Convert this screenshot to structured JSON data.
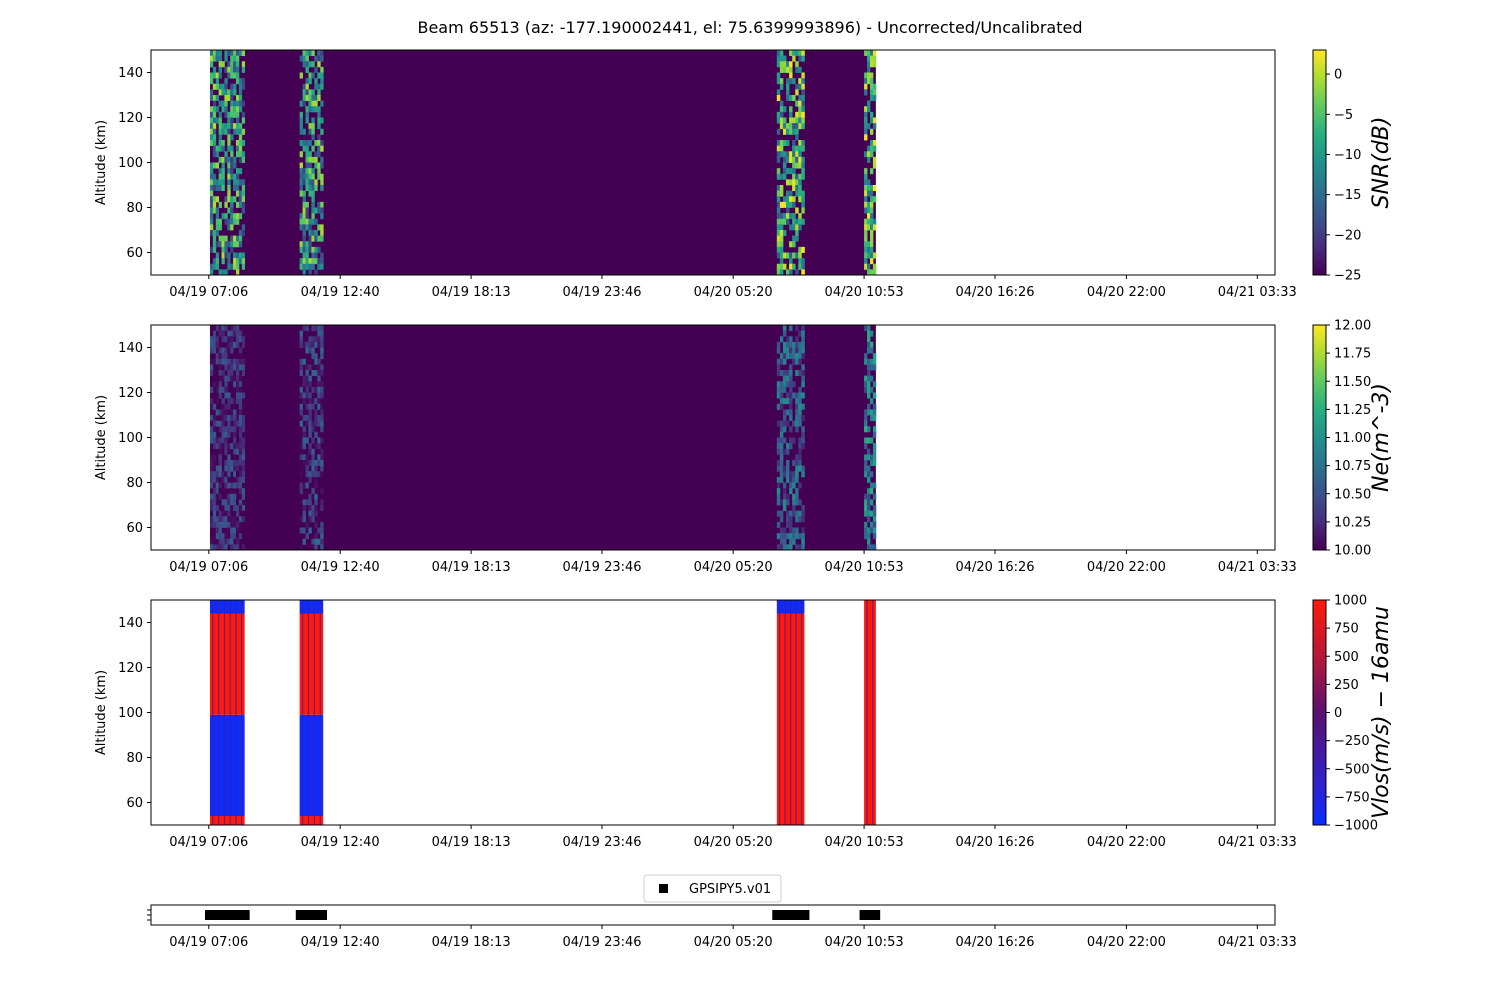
{
  "title": "Beam 65513 (az: -177.190002441, el: 75.6399993896) - Uncorrected/Uncalibrated",
  "time_ticks": [
    "04/19 07:06",
    "04/19 12:40",
    "04/19 18:13",
    "04/19 23:46",
    "04/20 05:20",
    "04/20 10:53",
    "04/20 16:26",
    "04/20 22:00",
    "04/21 03:33"
  ],
  "time_tick_hours": [
    7.1,
    12.67,
    18.22,
    23.77,
    29.33,
    34.88,
    40.43,
    46.0,
    51.55
  ],
  "time_range_hours": [
    4.65,
    52.3
  ],
  "chart_data": [
    {
      "type": "heatmap",
      "ylabel": "Altitude (km)",
      "ylim": [
        50,
        150
      ],
      "yticks": [
        60,
        80,
        100,
        120,
        140
      ],
      "colorbar": {
        "label": "SNR(dB)",
        "colormap": "viridis",
        "range": [
          -25,
          3
        ],
        "ticks": [
          0,
          -5,
          -10,
          -15,
          -20,
          -25
        ],
        "tick_labels": [
          "0",
          "−5",
          "−10",
          "−15",
          "−20",
          "−25"
        ]
      },
      "background_value": -25,
      "data_extent_hours": [
        7.15,
        35.38
      ],
      "series": [
        {
          "time_start": 7.15,
          "time_end": 8.62,
          "value_min": -20,
          "value_max": 0
        },
        {
          "time_start": 10.95,
          "time_end": 11.95,
          "value_min": -20,
          "value_max": 0
        },
        {
          "time_start": 31.18,
          "time_end": 32.35,
          "value_min": -18,
          "value_max": 3
        },
        {
          "time_start": 34.88,
          "time_end": 35.38,
          "value_min": -15,
          "value_max": 3
        }
      ]
    },
    {
      "type": "heatmap",
      "ylabel": "Altitude (km)",
      "ylim": [
        50,
        150
      ],
      "yticks": [
        60,
        80,
        100,
        120,
        140
      ],
      "colorbar": {
        "label": "Ne(m^-3)",
        "colormap": "viridis",
        "range": [
          10,
          12
        ],
        "ticks": [
          10.0,
          10.25,
          10.5,
          10.75,
          11.0,
          11.25,
          11.5,
          11.75,
          12.0
        ],
        "tick_labels": [
          "10.00",
          "10.25",
          "10.50",
          "10.75",
          "11.00",
          "11.25",
          "11.50",
          "11.75",
          "12.00"
        ]
      },
      "background_value": 10,
      "data_extent_hours": [
        7.15,
        35.38
      ],
      "series": [
        {
          "time_start": 7.15,
          "time_end": 8.62,
          "value_min": 10.0,
          "value_max": 10.6
        },
        {
          "time_start": 10.95,
          "time_end": 11.95,
          "value_min": 10.0,
          "value_max": 10.7
        },
        {
          "time_start": 31.18,
          "time_end": 32.35,
          "value_min": 10.2,
          "value_max": 11.0
        },
        {
          "time_start": 34.88,
          "time_end": 35.38,
          "value_min": 10.4,
          "value_max": 11.3
        }
      ]
    },
    {
      "type": "heatmap",
      "ylabel": "Altitude (km)",
      "ylim": [
        50,
        150
      ],
      "yticks": [
        60,
        80,
        100,
        120,
        140
      ],
      "colorbar": {
        "label": "Vlos(m/s) − 16amu",
        "colormap": "bwr",
        "range": [
          -1000,
          1000
        ],
        "ticks": [
          1000,
          750,
          500,
          250,
          0,
          -250,
          -500,
          -750,
          -1000
        ],
        "tick_labels": [
          "1000",
          "750",
          "500",
          "250",
          "0",
          "−250",
          "−500",
          "−750",
          "−1000"
        ]
      },
      "series": [
        {
          "time_start": 7.15,
          "time_end": 8.62,
          "altitude_bands": [
            {
              "from": 50,
              "to": 54,
              "value": 1000
            },
            {
              "from": 54,
              "to": 99,
              "value": -1000
            },
            {
              "from": 99,
              "to": 144,
              "value": 1000
            },
            {
              "from": 144,
              "to": 150,
              "value": -1000
            }
          ]
        },
        {
          "time_start": 10.95,
          "time_end": 11.95,
          "altitude_bands": [
            {
              "from": 50,
              "to": 54,
              "value": 1000
            },
            {
              "from": 54,
              "to": 99,
              "value": -1000
            },
            {
              "from": 99,
              "to": 144,
              "value": 1000
            },
            {
              "from": 144,
              "to": 150,
              "value": -1000
            }
          ]
        },
        {
          "time_start": 31.18,
          "time_end": 32.35,
          "altitude_bands": [
            {
              "from": 50,
              "to": 144,
              "value": 1000
            },
            {
              "from": 144,
              "to": 150,
              "value": -1000
            }
          ]
        },
        {
          "time_start": 34.88,
          "time_end": 35.38,
          "altitude_bands": [
            {
              "from": 50,
              "to": 150,
              "value": 1000
            }
          ]
        }
      ]
    },
    {
      "type": "scatter",
      "marker": "square",
      "color": "#000000",
      "legend": {
        "label": "GPSIPY5.v01",
        "position": "top-center"
      },
      "x_hours": [
        7.15,
        7.3,
        7.45,
        7.6,
        7.75,
        7.9,
        8.05,
        8.2,
        8.35,
        8.5,
        8.62,
        11.0,
        11.15,
        11.3,
        11.45,
        11.6,
        11.75,
        11.9,
        31.2,
        31.35,
        31.5,
        31.65,
        31.8,
        31.95,
        32.1,
        32.25,
        32.35,
        34.9,
        35.05,
        35.2,
        35.35
      ]
    }
  ]
}
